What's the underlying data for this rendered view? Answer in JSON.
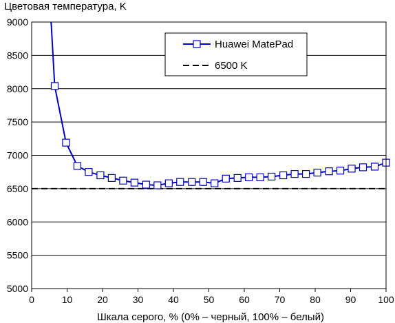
{
  "chart_data": {
    "type": "line",
    "title": "",
    "ylabel": "Цветовая температура, K",
    "xlabel": "Шкала серого, % (0% – черный, 100% – белый)",
    "xlim": [
      0,
      100
    ],
    "ylim": [
      5000,
      9000
    ],
    "x_ticks": [
      "0",
      "10",
      "20",
      "30",
      "40",
      "50",
      "60",
      "70",
      "80",
      "90",
      "100"
    ],
    "y_ticks": [
      "5000",
      "5500",
      "6000",
      "6500",
      "7000",
      "7500",
      "8000",
      "8500",
      "9000"
    ],
    "grid": "horizontal",
    "legend_position": "top-center",
    "series": [
      {
        "name": "Huawei MatePad",
        "color": "#0000c0",
        "marker": "open-square",
        "clip_above": 9000,
        "x": [
          5.5,
          6.5,
          9.7,
          12.9,
          16.1,
          19.4,
          22.6,
          25.8,
          29.0,
          32.3,
          35.5,
          38.7,
          41.9,
          45.2,
          48.4,
          51.6,
          54.8,
          58.1,
          61.3,
          64.5,
          67.7,
          71.0,
          74.2,
          77.4,
          80.6,
          83.9,
          87.1,
          90.3,
          93.5,
          96.8,
          100.0
        ],
        "y": [
          9100,
          8040,
          7190,
          6840,
          6750,
          6700,
          6660,
          6620,
          6590,
          6560,
          6550,
          6580,
          6600,
          6600,
          6600,
          6580,
          6650,
          6660,
          6670,
          6670,
          6680,
          6700,
          6720,
          6720,
          6740,
          6760,
          6770,
          6800,
          6820,
          6830,
          6890
        ]
      },
      {
        "name": "6500 K",
        "color": "#000000",
        "style": "dashed",
        "x": [
          0,
          100
        ],
        "y": [
          6500,
          6500
        ]
      }
    ]
  },
  "legend": {
    "items": [
      {
        "label": "Huawei MatePad",
        "icon": "line-with-square-marker"
      },
      {
        "label": "6500 K",
        "icon": "dashed-line"
      }
    ]
  }
}
